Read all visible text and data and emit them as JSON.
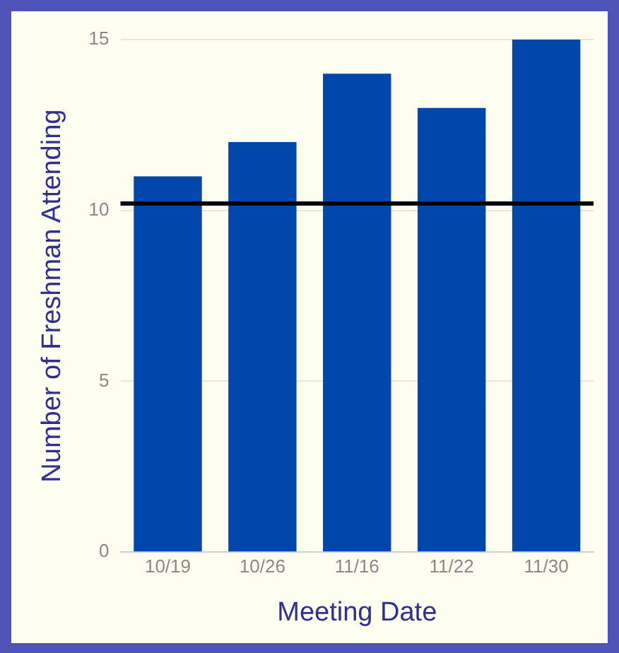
{
  "chart_data": {
    "type": "bar",
    "xlabel": "Meeting Date",
    "ylabel": "Number of Freshman Attending",
    "categories": [
      "10/19",
      "10/26",
      "11/16",
      "11/22",
      "11/30"
    ],
    "values": [
      11,
      12,
      14,
      13,
      15
    ],
    "color": "#0047ab",
    "ylim": [
      0,
      15
    ],
    "yticks": [
      0,
      5,
      10,
      15
    ],
    "grid": "y",
    "ref_lines": [
      {
        "axis": "y",
        "value": 10.2,
        "color": "#000000"
      }
    ]
  }
}
